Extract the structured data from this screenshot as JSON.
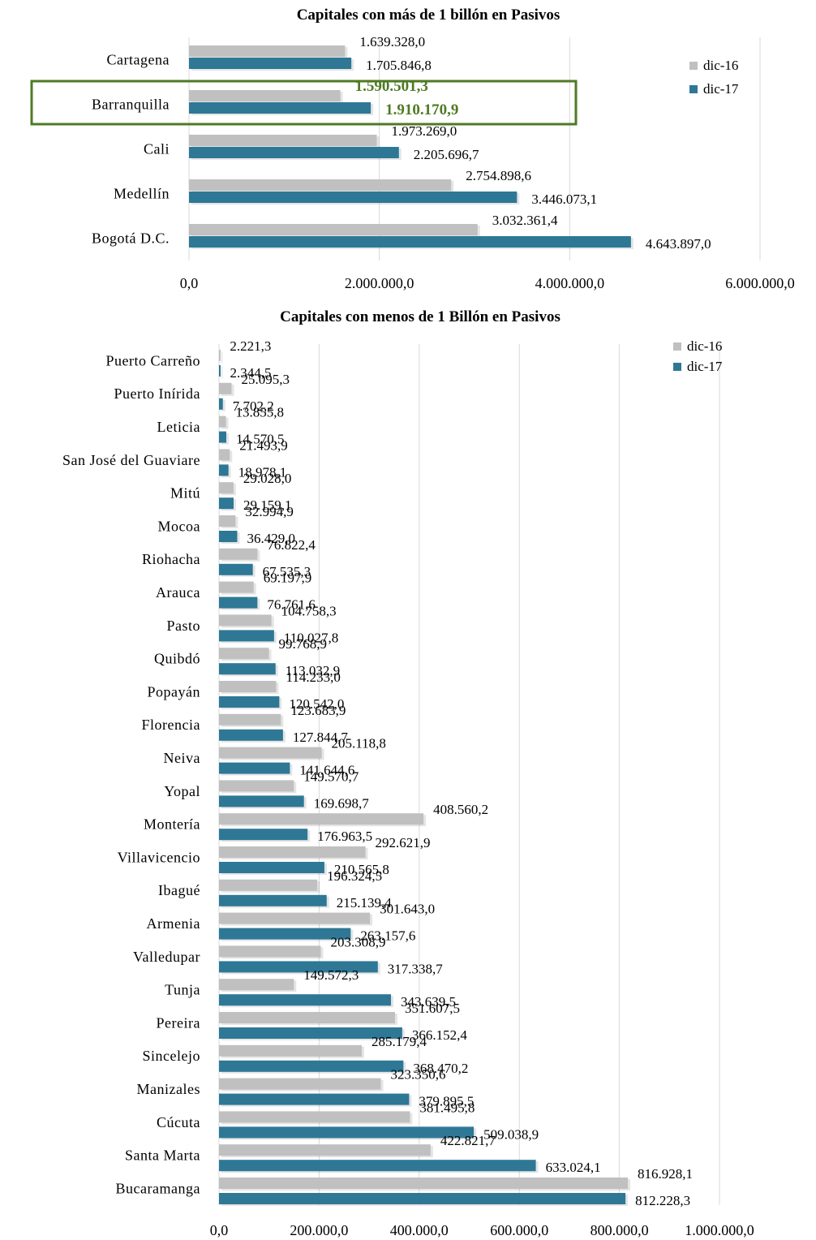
{
  "chart_data": [
    {
      "type": "bar",
      "orientation": "horizontal",
      "title": "Capitales con más de 1 billón en Pasivos",
      "categories": [
        "Cartagena",
        "Barranquilla",
        "Cali",
        "Medellín",
        "Bogotá D.C."
      ],
      "series": [
        {
          "name": "dic-16",
          "color": "#c0c0c0",
          "values": [
            1639328.0,
            1590501.3,
            1973269.0,
            2754898.6,
            3032361.4
          ],
          "labels": [
            "1.639.328,0",
            "1.590.501,3",
            "1.973.269,0",
            "2.754.898,6",
            "3.032.361,4"
          ]
        },
        {
          "name": "dic-17",
          "color": "#2e7896",
          "values": [
            1705846.8,
            1910170.9,
            2205696.7,
            3446073.1,
            4643897.0
          ],
          "labels": [
            "1.705.846,8",
            "1.910.170,9",
            "2.205.696,7",
            "3.446.073,1",
            "4.643.897,0"
          ]
        }
      ],
      "xlim": [
        0,
        6000000
      ],
      "xticks": [
        0,
        2000000,
        4000000,
        6000000
      ],
      "xtick_labels": [
        "0,0",
        "2.000.000,0",
        "4.000.000,0",
        "6.000.000,0"
      ],
      "grid": true,
      "legend": "top-right",
      "highlight": {
        "category": "Barranquilla",
        "color": "#4e7a23"
      }
    },
    {
      "type": "bar",
      "orientation": "horizontal",
      "title": "Capitales con menos de 1 Billón en Pasivos",
      "categories": [
        "Puerto Carreño",
        "Puerto Inírida",
        "Leticia",
        "San José del Guaviare",
        "Mitú",
        "Mocoa",
        "Riohacha",
        "Arauca",
        "Pasto",
        "Quibdó",
        "Popayán",
        "Florencia",
        "Neiva",
        "Yopal",
        "Montería",
        "Villavicencio",
        "Ibagué",
        "Armenia",
        "Valledupar",
        "Tunja",
        "Pereira",
        "Sincelejo",
        "Manizales",
        "Cúcuta",
        "Santa Marta",
        "Bucaramanga"
      ],
      "series": [
        {
          "name": "dic-16",
          "color": "#c0c0c0",
          "values": [
            2221.3,
            25095.3,
            13855.8,
            21493.9,
            29028.0,
            32994.9,
            76822.4,
            69197.9,
            104758.3,
            99768.9,
            114233.0,
            123683.9,
            205118.8,
            149570.7,
            408560.2,
            292621.9,
            196324.5,
            301643.0,
            203308.9,
            149572.3,
            351607.5,
            285179.4,
            323350.6,
            381495.8,
            422821.7,
            816928.1
          ],
          "labels": [
            "2.221,3",
            "25.095,3",
            "13.855,8",
            "21.493,9",
            "29.028,0",
            "32.994,9",
            "76.822,4",
            "69.197,9",
            "104.758,3",
            "99.768,9",
            "114.233,0",
            "123.683,9",
            "205.118,8",
            "149.570,7",
            "408.560,2",
            "292.621,9",
            "196.324,5",
            "301.643,0",
            "203.308,9",
            "149.572,3",
            "351.607,5",
            "285.179,4",
            "323.350,6",
            "381.495,8",
            "422.821,7",
            "816.928,1"
          ]
        },
        {
          "name": "dic-17",
          "color": "#2e7896",
          "values": [
            2344.5,
            7702.2,
            14570.5,
            18978.1,
            29159.1,
            36429.0,
            67535.3,
            76761.6,
            110027.8,
            113032.9,
            120542.0,
            127844.7,
            141644.6,
            169698.7,
            176963.5,
            210565.8,
            215139.4,
            263157.6,
            317338.7,
            343639.5,
            366152.4,
            368470.2,
            379895.5,
            509038.9,
            633024.1,
            812228.3
          ],
          "labels": [
            "2.344,5",
            "7.702,2",
            "14.570,5",
            "18.978,1",
            "29.159,1",
            "36.429,0",
            "67.535,3",
            "76.761,6",
            "110.027,8",
            "113.032,9",
            "120.542,0",
            "127.844,7",
            "141.644,6",
            "169.698,7",
            "176.963,5",
            "210.565,8",
            "215.139,4",
            "263.157,6",
            "317.338,7",
            "343.639,5",
            "366.152,4",
            "368.470,2",
            "379.895,5",
            "509.038,9",
            "633.024,1",
            "812.228,3"
          ]
        }
      ],
      "xlim": [
        0,
        1000000
      ],
      "xticks": [
        0,
        200000,
        400000,
        600000,
        800000,
        1000000
      ],
      "xtick_labels": [
        "0,0",
        "200.000,0",
        "400.000,0",
        "600.000,0",
        "800.000,0",
        "1.000.000,0"
      ],
      "grid": true,
      "legend": "top-right"
    }
  ]
}
